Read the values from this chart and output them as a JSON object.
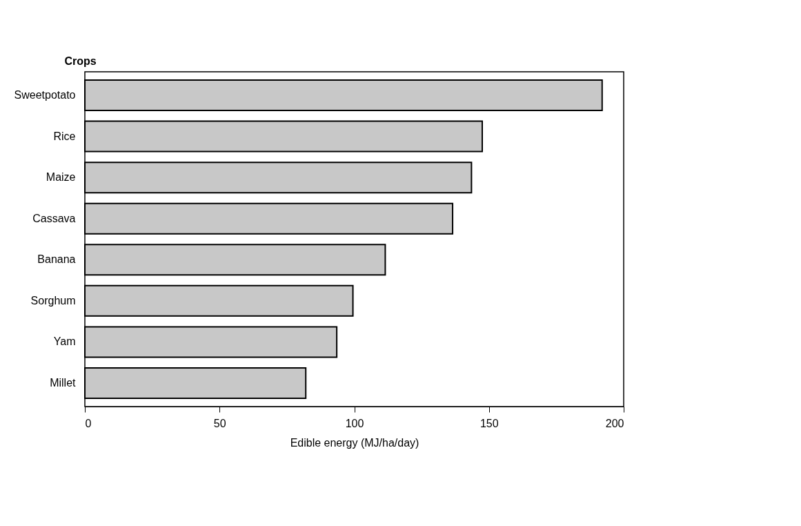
{
  "chart_data": {
    "type": "bar",
    "orientation": "horizontal",
    "ylabel": "Crops",
    "xlabel": "Edible energy (MJ/ha/day)",
    "categories": [
      "Sweetpotato",
      "Rice",
      "Maize",
      "Cassava",
      "Banana",
      "Sorghum",
      "Yam",
      "Millet"
    ],
    "values": [
      192,
      147.5,
      143.5,
      136.5,
      111.5,
      99.5,
      93.5,
      82
    ],
    "color": "#c8c8c8",
    "xlim": [
      0,
      200
    ],
    "xticks": [
      0,
      50,
      100,
      150,
      200
    ],
    "grid": false
  }
}
